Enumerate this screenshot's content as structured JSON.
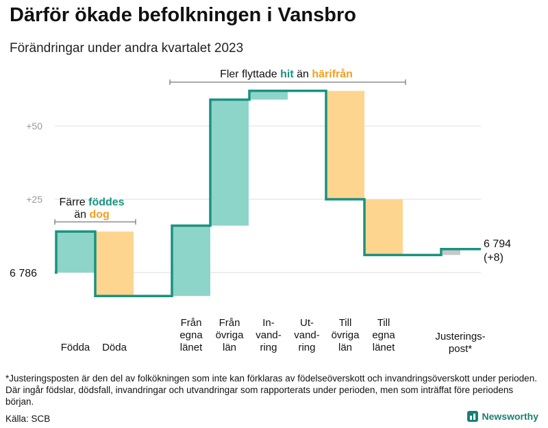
{
  "title": "Därför ökade befolkningen i Vansbro",
  "subtitle": "Förändringar under andra kvartalet 2023",
  "footnote": "*Justeringsposten är den del av folkökningen som inte kan förklaras av födelseöverskott och invandringsöverskott under perioden. Där ingår födslar, dödsfall, invandringar och utvandringar som rapporterats under perioden, men som inträffat före periodens början.",
  "source": "Källa: SCB",
  "brand": "Newsworthy",
  "colors": {
    "increase": "#8dd5c8",
    "decrease": "#fdd58e",
    "adjustment": "#c8c8c8",
    "line": "#1a9180",
    "teal_text": "#1a9180",
    "orange_text": "#f0a020",
    "grid": "#dddddd",
    "tick": "#999999"
  },
  "chart_data": {
    "type": "waterfall",
    "start_label": "6  786",
    "start_value": 6786,
    "end_value_label": "6 794",
    "end_change_label": "(+8)",
    "ylim": [
      -5,
      67
    ],
    "y_ticks": [
      {
        "value": 25,
        "label": "+25"
      },
      {
        "value": 50,
        "label": "+50"
      }
    ],
    "steps": [
      {
        "label": [
          "Födda"
        ],
        "change": 14,
        "kind": "increase"
      },
      {
        "label": [
          "Döda"
        ],
        "change": -22,
        "kind": "decrease"
      },
      {
        "label": [
          "Från",
          "egna",
          "länet"
        ],
        "change": 24,
        "kind": "increase"
      },
      {
        "label": [
          "Från",
          "övriga",
          "län"
        ],
        "change": 43,
        "kind": "increase"
      },
      {
        "label": [
          "In-",
          "vand-",
          "ring"
        ],
        "change": 3,
        "kind": "increase"
      },
      {
        "label": [
          "Ut-",
          "vand-",
          "ring"
        ],
        "change": 0,
        "kind": "decrease"
      },
      {
        "label": [
          "Till",
          "övriga",
          "län"
        ],
        "change": -37,
        "kind": "decrease"
      },
      {
        "label": [
          "Till",
          "egna",
          "länet"
        ],
        "change": -19,
        "kind": "decrease"
      },
      {
        "label": [
          "Justerings-",
          "post*"
        ],
        "change": 2,
        "kind": "adjustment"
      }
    ],
    "annotations": [
      {
        "parts": [
          [
            "Färre ",
            "normal"
          ],
          [
            "föddes",
            "teal"
          ]
        ],
        "line2": [
          [
            "än ",
            "normal"
          ],
          [
            "dog",
            "orange"
          ]
        ]
      },
      {
        "parts": [
          [
            "Fler flyttade ",
            "normal"
          ],
          [
            "hit",
            "teal"
          ],
          [
            " än ",
            "normal"
          ],
          [
            "härifrån",
            "orange"
          ]
        ]
      }
    ]
  }
}
